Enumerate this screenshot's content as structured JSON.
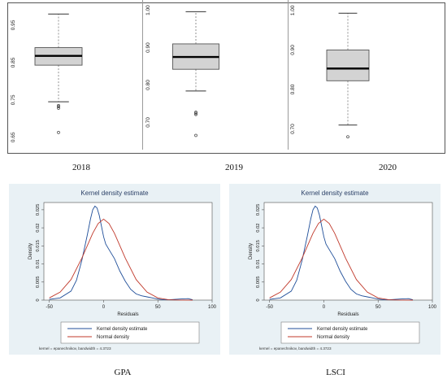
{
  "boxplots": {
    "captions": [
      "2018",
      "2019",
      "2020"
    ]
  },
  "kernel_panels": [
    {
      "title": "Kernel density estimate",
      "xlabel": "Residuals",
      "ylabel": "Density",
      "legend": [
        "Kernel density estimate",
        "Normal density"
      ],
      "note": "kernel = epanechnikov, bandwidth = 4.3723",
      "caption": "GPA"
    },
    {
      "title": "Kernel density estimate",
      "xlabel": "Residuals",
      "ylabel": "Density",
      "legend": [
        "Kernel density estimate",
        "Normal density"
      ],
      "note": "kernel = epanechnikov, bandwidth = 4.3723",
      "caption": "LSCI"
    }
  ],
  "colors": {
    "kernel_line": "#1f4e99",
    "normal_line": "#c0392b",
    "box_fill": "#d3d3d3",
    "panel_bg": "#e9f1f5"
  },
  "chart_data": [
    {
      "type": "box",
      "category": "2018",
      "ticks": [
        "0.65",
        "0.75",
        "0.85",
        "0.95"
      ],
      "ylim": [
        0.63,
        1.0
      ],
      "whisker_low": 0.745,
      "q1": 0.843,
      "median": 0.868,
      "q3": 0.89,
      "whisker_high": 0.98,
      "outliers": [
        0.735,
        0.732,
        0.728,
        0.663
      ]
    },
    {
      "type": "box",
      "category": "2019",
      "ticks": [
        "0.70",
        "0.80",
        "0.90",
        "1.00"
      ],
      "ylim": [
        0.64,
        1.01
      ],
      "whisker_low": 0.784,
      "q1": 0.842,
      "median": 0.875,
      "q3": 0.91,
      "whisker_high": 0.996,
      "outliers": [
        0.727,
        0.724,
        0.721,
        0.665
      ]
    },
    {
      "type": "box",
      "category": "2020",
      "ticks": [
        "0.70",
        "0.80",
        "0.90",
        "1.00"
      ],
      "ylim": [
        0.66,
        1.01
      ],
      "whisker_low": 0.71,
      "q1": 0.822,
      "median": 0.853,
      "q3": 0.9,
      "whisker_high": 0.993,
      "outliers": [
        0.68
      ]
    },
    {
      "type": "line",
      "caption": "GPA",
      "xlim": [
        -55,
        100
      ],
      "ylim": [
        0,
        0.027
      ],
      "xticks": [
        "-50",
        "0",
        "50",
        "100"
      ],
      "yticks": [
        "0",
        "0.005",
        "0.01",
        "0.015",
        "0.02",
        "0.025"
      ],
      "series": [
        {
          "name": "Kernel density estimate",
          "x": [
            -50,
            -40,
            -30,
            -25,
            -20,
            -15,
            -12,
            -10,
            -8,
            -6,
            -4,
            -2,
            0,
            2,
            5,
            10,
            15,
            20,
            25,
            30,
            35,
            40,
            45,
            50,
            55,
            60,
            70,
            78,
            82
          ],
          "y": [
            0.0002,
            0.0006,
            0.0025,
            0.0055,
            0.011,
            0.018,
            0.0225,
            0.025,
            0.026,
            0.0255,
            0.0235,
            0.0205,
            0.0175,
            0.0155,
            0.014,
            0.0115,
            0.008,
            0.0052,
            0.003,
            0.0017,
            0.0012,
            0.0009,
            0.0006,
            0.0003,
            0.0001,
            0.0001,
            0.0003,
            0.0004,
            0.0001
          ]
        },
        {
          "name": "Normal density",
          "x": [
            -50,
            -40,
            -30,
            -20,
            -10,
            -5,
            0,
            5,
            10,
            20,
            30,
            40,
            50,
            60,
            70,
            82
          ],
          "y": [
            0.0006,
            0.0022,
            0.0057,
            0.0116,
            0.0185,
            0.0212,
            0.0224,
            0.0212,
            0.0185,
            0.0116,
            0.0057,
            0.0022,
            0.0006,
            0.0001,
            2e-05,
            0.0
          ]
        }
      ]
    },
    {
      "type": "line",
      "caption": "LSCI",
      "xlim": [
        -55,
        100
      ],
      "ylim": [
        0,
        0.027
      ],
      "xticks": [
        "-50",
        "0",
        "50",
        "100"
      ],
      "yticks": [
        "0",
        "0.005",
        "0.01",
        "0.015",
        "0.02",
        "0.025"
      ],
      "series": [
        {
          "name": "Kernel density estimate",
          "x": [
            -50,
            -40,
            -30,
            -25,
            -20,
            -15,
            -12,
            -10,
            -8,
            -6,
            -4,
            -2,
            0,
            2,
            5,
            10,
            15,
            20,
            25,
            30,
            35,
            40,
            45,
            50,
            55,
            60,
            70,
            78,
            82
          ],
          "y": [
            0.0002,
            0.0006,
            0.0025,
            0.0055,
            0.011,
            0.018,
            0.0225,
            0.025,
            0.026,
            0.0255,
            0.0235,
            0.0205,
            0.0175,
            0.0155,
            0.014,
            0.0115,
            0.008,
            0.0052,
            0.003,
            0.0017,
            0.0012,
            0.0009,
            0.0006,
            0.0003,
            0.0001,
            0.0001,
            0.0003,
            0.0004,
            0.0001
          ]
        },
        {
          "name": "Normal density",
          "x": [
            -50,
            -40,
            -30,
            -20,
            -10,
            -5,
            0,
            5,
            10,
            20,
            30,
            40,
            50,
            60,
            70,
            82
          ],
          "y": [
            0.0006,
            0.0022,
            0.0057,
            0.0116,
            0.0185,
            0.0212,
            0.0224,
            0.0212,
            0.0185,
            0.0116,
            0.0057,
            0.0022,
            0.0006,
            0.0001,
            2e-05,
            0.0
          ]
        }
      ]
    }
  ]
}
